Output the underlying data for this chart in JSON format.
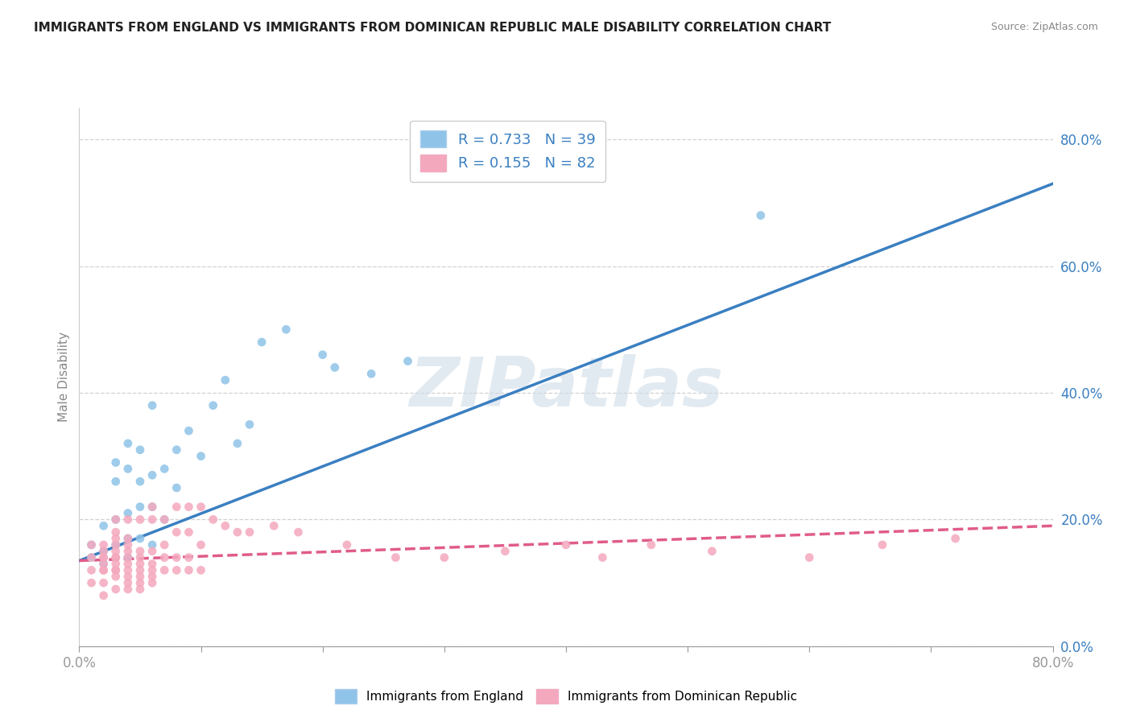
{
  "title": "IMMIGRANTS FROM ENGLAND VS IMMIGRANTS FROM DOMINICAN REPUBLIC MALE DISABILITY CORRELATION CHART",
  "source": "Source: ZipAtlas.com",
  "ylabel": "Male Disability",
  "legend1_label": "Immigrants from England",
  "legend2_label": "Immigrants from Dominican Republic",
  "R1": 0.733,
  "N1": 39,
  "R2": 0.155,
  "N2": 82,
  "color1": "#8fc4e8",
  "color2": "#f4a8be",
  "trendline1_color": "#3a7fc1",
  "trendline2_color": "#e05c8a",
  "background_color": "#ffffff",
  "grid_color": "#cccccc",
  "watermark": "ZIPatlas",
  "xlim": [
    0.0,
    0.8
  ],
  "ylim": [
    0.0,
    0.85
  ],
  "yticks": [
    0.0,
    0.2,
    0.4,
    0.6,
    0.8
  ],
  "xticks": [
    0.0,
    0.1,
    0.2,
    0.3,
    0.4,
    0.5,
    0.6,
    0.7,
    0.8
  ],
  "england_x": [
    0.01,
    0.01,
    0.02,
    0.02,
    0.02,
    0.03,
    0.03,
    0.03,
    0.03,
    0.04,
    0.04,
    0.04,
    0.04,
    0.04,
    0.05,
    0.05,
    0.05,
    0.05,
    0.06,
    0.06,
    0.06,
    0.07,
    0.07,
    0.08,
    0.08,
    0.09,
    0.1,
    0.11,
    0.12,
    0.13,
    0.14,
    0.15,
    0.17,
    0.2,
    0.21,
    0.24,
    0.27,
    0.56,
    0.06
  ],
  "england_y": [
    0.14,
    0.16,
    0.13,
    0.15,
    0.19,
    0.16,
    0.2,
    0.26,
    0.29,
    0.14,
    0.17,
    0.21,
    0.28,
    0.32,
    0.17,
    0.22,
    0.26,
    0.31,
    0.16,
    0.22,
    0.27,
    0.2,
    0.28,
    0.25,
    0.31,
    0.34,
    0.3,
    0.38,
    0.42,
    0.32,
    0.35,
    0.48,
    0.5,
    0.46,
    0.44,
    0.43,
    0.45,
    0.68,
    0.38
  ],
  "dominican_x": [
    0.01,
    0.01,
    0.01,
    0.01,
    0.02,
    0.02,
    0.02,
    0.02,
    0.02,
    0.02,
    0.02,
    0.02,
    0.02,
    0.03,
    0.03,
    0.03,
    0.03,
    0.03,
    0.03,
    0.03,
    0.03,
    0.03,
    0.03,
    0.03,
    0.03,
    0.04,
    0.04,
    0.04,
    0.04,
    0.04,
    0.04,
    0.04,
    0.04,
    0.04,
    0.04,
    0.05,
    0.05,
    0.05,
    0.05,
    0.05,
    0.05,
    0.05,
    0.05,
    0.06,
    0.06,
    0.06,
    0.06,
    0.06,
    0.06,
    0.06,
    0.07,
    0.07,
    0.07,
    0.07,
    0.08,
    0.08,
    0.08,
    0.08,
    0.09,
    0.09,
    0.09,
    0.09,
    0.1,
    0.1,
    0.1,
    0.11,
    0.12,
    0.13,
    0.14,
    0.16,
    0.18,
    0.22,
    0.26,
    0.3,
    0.35,
    0.4,
    0.43,
    0.47,
    0.52,
    0.6,
    0.66,
    0.72
  ],
  "dominican_y": [
    0.1,
    0.12,
    0.14,
    0.16,
    0.08,
    0.1,
    0.12,
    0.12,
    0.13,
    0.14,
    0.14,
    0.15,
    0.16,
    0.09,
    0.11,
    0.12,
    0.12,
    0.13,
    0.14,
    0.14,
    0.15,
    0.16,
    0.17,
    0.18,
    0.2,
    0.09,
    0.1,
    0.11,
    0.12,
    0.13,
    0.14,
    0.15,
    0.16,
    0.17,
    0.2,
    0.09,
    0.1,
    0.11,
    0.12,
    0.13,
    0.14,
    0.15,
    0.2,
    0.1,
    0.11,
    0.12,
    0.13,
    0.15,
    0.2,
    0.22,
    0.12,
    0.14,
    0.16,
    0.2,
    0.12,
    0.14,
    0.18,
    0.22,
    0.12,
    0.14,
    0.18,
    0.22,
    0.12,
    0.16,
    0.22,
    0.2,
    0.19,
    0.18,
    0.18,
    0.19,
    0.18,
    0.16,
    0.14,
    0.14,
    0.15,
    0.16,
    0.14,
    0.16,
    0.15,
    0.14,
    0.16,
    0.17
  ],
  "trendline1_x": [
    0.0,
    0.8
  ],
  "trendline1_y": [
    0.135,
    0.73
  ],
  "trendline2_x": [
    0.0,
    0.8
  ],
  "trendline2_y": [
    0.135,
    0.19
  ]
}
